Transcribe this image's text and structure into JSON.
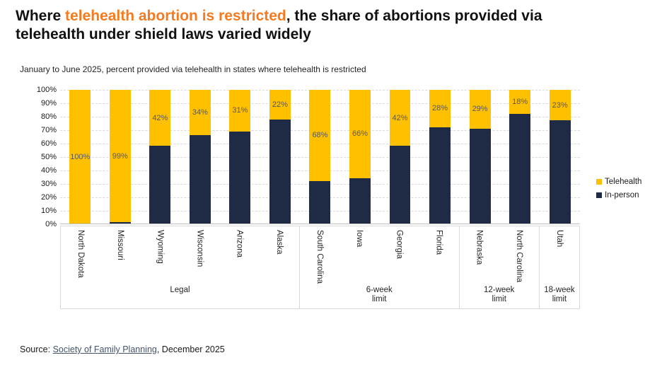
{
  "title": {
    "prefix": "Where ",
    "highlight": "telehealth abortion is restricted",
    "suffix_line1": ", the share of abortions provided via",
    "line2": "telehealth under shield laws varied widely",
    "highlight_color": "#F47B20"
  },
  "subtitle": "January to June 2025, percent provided via telehealth in states where telehealth is restricted",
  "source": {
    "prefix": "Source: ",
    "link": "Society of Family Planning",
    "suffix": ", December 2025"
  },
  "legend": {
    "position": "right",
    "items": [
      {
        "label": "Telehealth",
        "color": "#FFC000"
      },
      {
        "label": "In-person",
        "color": "#1F2A44"
      }
    ]
  },
  "chart_data": {
    "type": "bar",
    "stacked": true,
    "title": "Where telehealth abortion is restricted, the share of abortions provided via telehealth under shield laws varied widely",
    "subtitle": "January to June 2025, percent provided via telehealth in states where telehealth is restricted",
    "xlabel": "",
    "ylabel": "",
    "ylim": [
      0,
      100
    ],
    "grid": "dashed-horizontal",
    "yticks": [
      "100%",
      "90%",
      "80%",
      "70%",
      "60%",
      "50%",
      "40%",
      "30%",
      "20%",
      "10%",
      "0%"
    ],
    "categories": [
      "North Dakota",
      "Missouri",
      "Wyoming",
      "Wisconsin",
      "Arizona",
      "Alaska",
      "South Carolina",
      "Iowa",
      "Georgia",
      "Florida",
      "Nebraska",
      "North Carolina",
      "Utah"
    ],
    "groups": [
      {
        "label_lines": [
          "Legal"
        ],
        "span": 6
      },
      {
        "label_lines": [
          "6-week",
          "limit"
        ],
        "span": 4
      },
      {
        "label_lines": [
          "12-week",
          "limit"
        ],
        "span": 2
      },
      {
        "label_lines": [
          "18-week",
          "limit"
        ],
        "span": 1
      }
    ],
    "series": [
      {
        "name": "Telehealth",
        "color": "#FFC000",
        "values": [
          100,
          99,
          42,
          34,
          31,
          22,
          68,
          66,
          42,
          28,
          29,
          18,
          23
        ]
      },
      {
        "name": "In-person",
        "color": "#1F2A44",
        "values": [
          0,
          1,
          58,
          66,
          69,
          78,
          32,
          34,
          58,
          72,
          71,
          82,
          77
        ]
      }
    ],
    "bar_labels": [
      "100%",
      "99%",
      "42%",
      "34%",
      "31%",
      "22%",
      "68%",
      "66%",
      "42%",
      "28%",
      "29%",
      "18%",
      "23%"
    ]
  }
}
